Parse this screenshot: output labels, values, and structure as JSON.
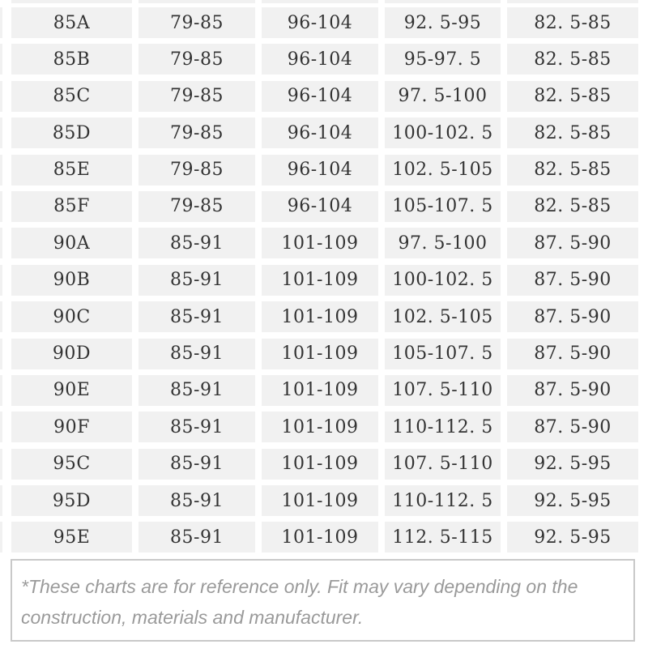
{
  "chart_data": {
    "type": "table",
    "description": "Bra size chart (cm ranges); header row not visible (cropped at top)",
    "rows": [
      [
        "85A",
        "79-85",
        "96-104",
        "92. 5-95",
        "82. 5-85"
      ],
      [
        "85B",
        "79-85",
        "96-104",
        "95-97. 5",
        "82. 5-85"
      ],
      [
        "85C",
        "79-85",
        "96-104",
        "97. 5-100",
        "82. 5-85"
      ],
      [
        "85D",
        "79-85",
        "96-104",
        "100-102. 5",
        "82. 5-85"
      ],
      [
        "85E",
        "79-85",
        "96-104",
        "102. 5-105",
        "82. 5-85"
      ],
      [
        "85F",
        "79-85",
        "96-104",
        "105-107. 5",
        "82. 5-85"
      ],
      [
        "90A",
        "85-91",
        "101-109",
        "97. 5-100",
        "87. 5-90"
      ],
      [
        "90B",
        "85-91",
        "101-109",
        "100-102. 5",
        "87. 5-90"
      ],
      [
        "90C",
        "85-91",
        "101-109",
        "102. 5-105",
        "87. 5-90"
      ],
      [
        "90D",
        "85-91",
        "101-109",
        "105-107. 5",
        "87. 5-90"
      ],
      [
        "90E",
        "85-91",
        "101-109",
        "107. 5-110",
        "87. 5-90"
      ],
      [
        "90F",
        "85-91",
        "101-109",
        "110-112. 5",
        "87. 5-90"
      ],
      [
        "95C",
        "85-91",
        "101-109",
        "107. 5-110",
        "92. 5-95"
      ],
      [
        "95D",
        "85-91",
        "101-109",
        "110-112. 5",
        "92. 5-95"
      ],
      [
        "95E",
        "85-91",
        "101-109",
        "112. 5-115",
        "92. 5-95"
      ]
    ],
    "footnote_lines": [
      "*These charts are for reference only. Fit may vary depending on the",
      "construction, materials and manufacturer."
    ]
  },
  "colors": {
    "background": "#ffffff",
    "cell_background": "#f1f1f1",
    "cell_text": "#333333",
    "footnote_text": "#9a9a9a",
    "footnote_border": "#c9c9c9"
  }
}
